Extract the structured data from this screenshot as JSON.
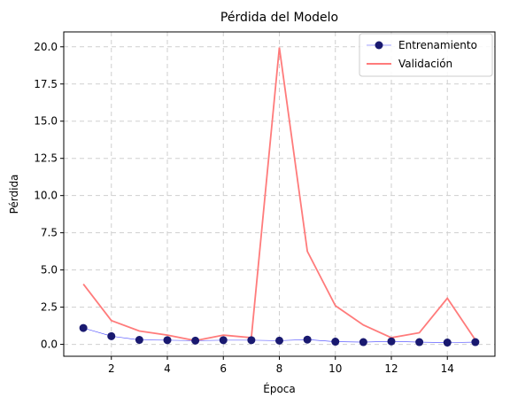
{
  "chart_data": {
    "type": "line",
    "title": "Pérdida del Modelo",
    "xlabel": "Época",
    "ylabel": "Pérdida",
    "x": [
      1,
      2,
      3,
      4,
      5,
      6,
      7,
      8,
      9,
      10,
      11,
      12,
      13,
      14,
      15
    ],
    "xlim": [
      0.3,
      15.7
    ],
    "ylim": [
      -0.8,
      21.0
    ],
    "xticks": [
      2,
      4,
      6,
      8,
      10,
      12,
      14
    ],
    "yticks": [
      0.0,
      2.5,
      5.0,
      7.5,
      10.0,
      12.5,
      15.0,
      17.5,
      20.0
    ],
    "grid": true,
    "legend_position": "top-right",
    "series": [
      {
        "name": "Entrenamiento",
        "style": "line-with-markers",
        "color": "#4040ff",
        "marker_color": "#191970",
        "values": [
          1.1,
          0.55,
          0.3,
          0.28,
          0.25,
          0.28,
          0.28,
          0.25,
          0.32,
          0.18,
          0.15,
          0.2,
          0.15,
          0.12,
          0.15
        ]
      },
      {
        "name": "Validación",
        "style": "line",
        "color": "#ff7b7b",
        "values": [
          4.05,
          1.6,
          0.9,
          0.62,
          0.25,
          0.62,
          0.45,
          19.95,
          6.25,
          2.6,
          1.3,
          0.45,
          0.78,
          3.1,
          0.3
        ]
      }
    ]
  }
}
